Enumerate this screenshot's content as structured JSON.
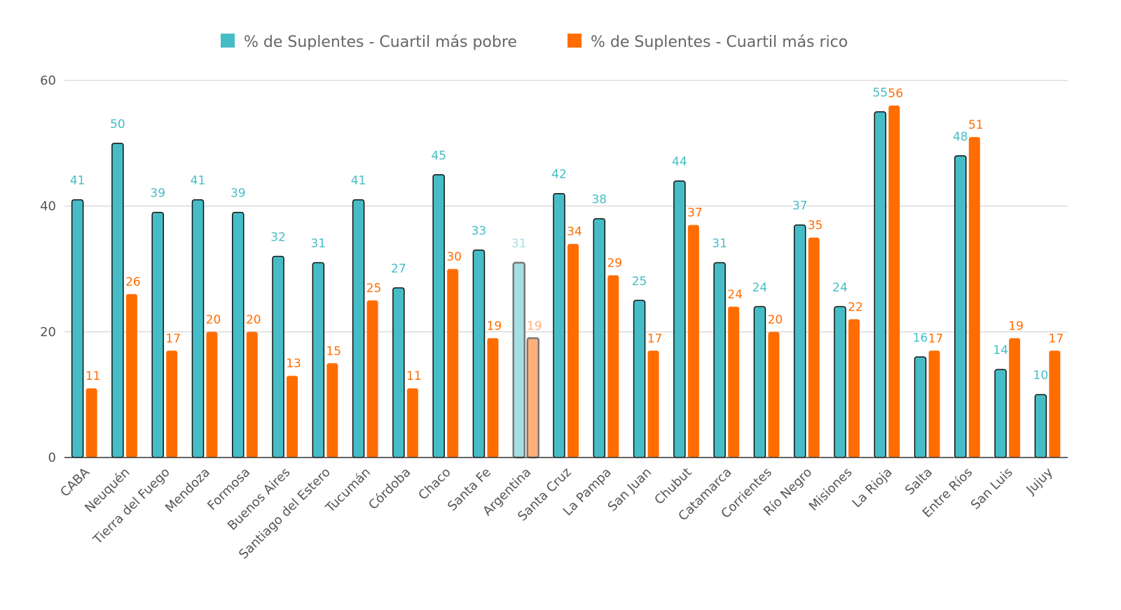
{
  "chart_data": {
    "type": "bar",
    "title": "",
    "xlabel": "",
    "ylabel": "",
    "ylim": [
      0,
      60
    ],
    "yticks": [
      0,
      20,
      40,
      60
    ],
    "grid": true,
    "legend_position": "top",
    "highlighted_category": "Argentina",
    "categories": [
      "CABA",
      "Neuquén",
      "Tierra del Fuego",
      "Mendoza",
      "Formosa",
      "Buenos Aires",
      "Santiago del Estero",
      "Tucumán",
      "Córdoba",
      "Chaco",
      "Santa Fe",
      "Argentina",
      "Santa Cruz",
      "La Pampa",
      "San Juan",
      "Chubut",
      "Catamarca",
      "Corrientes",
      "Río Negro",
      "Misiones",
      "La Rioja",
      "Salta",
      "Entre Ríos",
      "San Luis",
      "Jujuy"
    ],
    "series": [
      {
        "name": "% de Suplentes - Cuartil más pobre",
        "color": "#46BDC6",
        "values": [
          41,
          50,
          39,
          41,
          39,
          32,
          31,
          41,
          27,
          45,
          33,
          31,
          42,
          38,
          25,
          44,
          31,
          24,
          37,
          24,
          55,
          16,
          48,
          14,
          10
        ]
      },
      {
        "name": "% de Suplentes - Cuartil más rico",
        "color": "#FF6D01",
        "values": [
          11,
          26,
          17,
          20,
          20,
          13,
          15,
          25,
          11,
          30,
          19,
          19,
          34,
          29,
          17,
          37,
          24,
          20,
          35,
          22,
          56,
          17,
          51,
          19,
          17
        ]
      }
    ]
  }
}
